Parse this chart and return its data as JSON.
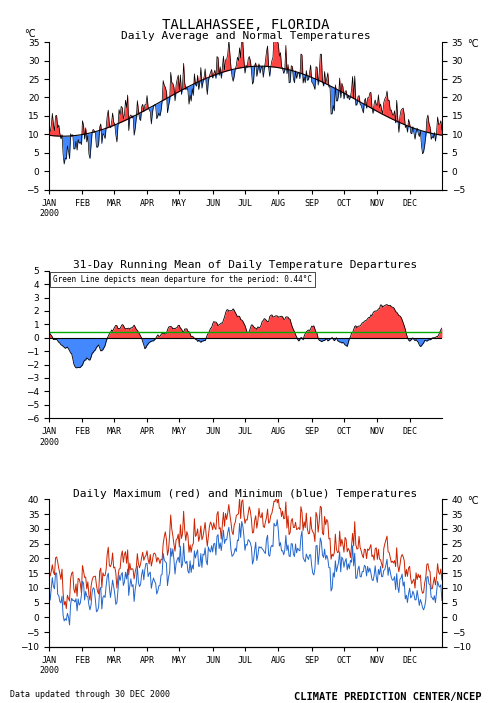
{
  "title": "TALLAHASSEE, FLORIDA",
  "panel1_title": "Daily Average and Normal Temperatures",
  "panel2_title": "31-Day Running Mean of Daily Temperature Departures",
  "panel3_title": "Daily Maximum (red) and Minimum (blue) Temperatures",
  "panel2_annotation": "Green Line depicts mean departure for the period: 0.44°C",
  "mean_departure": 0.44,
  "footer_left": "Data updated through 30 DEC 2000",
  "footer_right": "CLIMATE PREDICTION CENTER/NCEP",
  "panel1_ylim": [
    -5,
    35
  ],
  "panel1_yticks": [
    -5,
    0,
    5,
    10,
    15,
    20,
    25,
    30,
    35
  ],
  "panel2_ylim": [
    -6,
    5
  ],
  "panel2_yticks": [
    -6,
    -5,
    -4,
    -3,
    -2,
    -1,
    0,
    1,
    2,
    3,
    4,
    5
  ],
  "panel3_ylim": [
    -10,
    40
  ],
  "panel3_yticks": [
    -10,
    -5,
    0,
    5,
    10,
    15,
    20,
    25,
    30,
    35,
    40
  ],
  "months": [
    "JAN\n2000",
    "FEB",
    "MAR",
    "APR",
    "MAY",
    "JUN",
    "JUL",
    "AUG",
    "SEP",
    "OCT",
    "NOV",
    "DEC"
  ],
  "color_above": "#FF4444",
  "color_below": "#4488FF",
  "color_line": "#000000",
  "color_green": "#00AA00",
  "background": "#FFFFFF"
}
